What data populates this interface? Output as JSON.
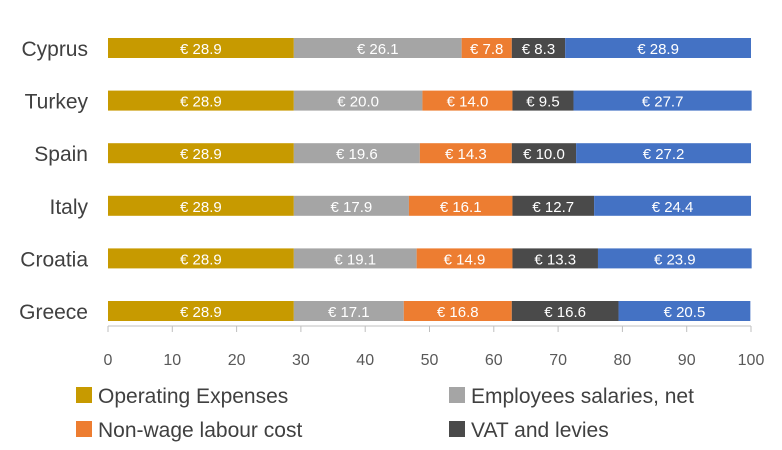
{
  "chart_data": {
    "type": "bar",
    "orientation": "horizontal",
    "stacked": true,
    "categories": [
      "Cyprus",
      "Turkey",
      "Spain",
      "Italy",
      "Croatia",
      "Greece"
    ],
    "series": [
      {
        "name": "Operating Expenses",
        "color": "#C79A00",
        "values": [
          28.9,
          28.9,
          28.9,
          28.9,
          28.9,
          28.9
        ],
        "labels": [
          "€ 28.9",
          "€ 28.9",
          "€ 28.9",
          "€ 28.9",
          "€ 28.9",
          "€ 28.9"
        ]
      },
      {
        "name": "Employees salaries, net",
        "color": "#A5A5A5",
        "values": [
          26.1,
          20.0,
          19.6,
          17.9,
          19.1,
          17.1
        ],
        "labels": [
          "€ 26.1",
          "€ 20.0",
          "€ 19.6",
          "€ 17.9",
          "€ 19.1",
          "€ 17.1"
        ]
      },
      {
        "name": "Non-wage labour cost",
        "color": "#ED7D31",
        "values": [
          7.8,
          14.0,
          14.3,
          16.1,
          14.9,
          16.8
        ],
        "labels": [
          "€ 7.8",
          "€ 14.0",
          "€ 14.3",
          "€ 16.1",
          "€ 14.9",
          "€ 16.8"
        ]
      },
      {
        "name": "VAT and levies",
        "color": "#4A4A4A",
        "values": [
          8.3,
          9.5,
          10.0,
          12.7,
          13.3,
          16.6
        ],
        "labels": [
          "€ 8.3",
          "€ 9.5",
          "€ 10.0",
          "€ 12.7",
          "€ 13.3",
          "€ 16.6"
        ]
      },
      {
        "name": "",
        "color": "#4472C4",
        "values": [
          28.9,
          27.7,
          27.2,
          24.4,
          23.9,
          20.5
        ],
        "labels": [
          "€ 28.9",
          "€ 27.7",
          "€ 27.2",
          "€ 24.4",
          "€ 23.9",
          "€ 20.5"
        ]
      }
    ],
    "xlim": [
      0,
      100
    ],
    "x_ticks": [
      "0",
      "10",
      "20",
      "30",
      "40",
      "50",
      "60",
      "70",
      "80",
      "90",
      "100"
    ],
    "title": "",
    "xlabel": "",
    "ylabel": "",
    "grid": false,
    "legend": {
      "placement": "bottom",
      "entries": [
        "Operating Expenses",
        "Employees salaries, net",
        "Non-wage labour cost",
        "VAT and levies"
      ]
    }
  }
}
